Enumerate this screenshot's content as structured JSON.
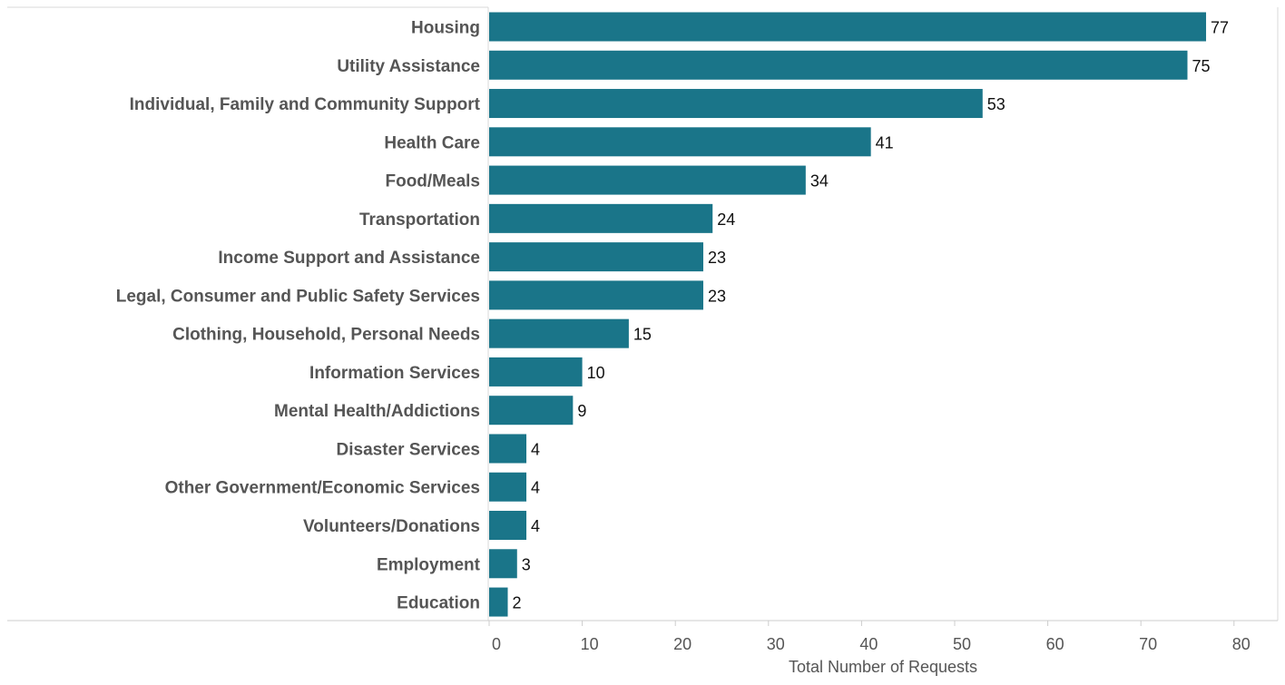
{
  "chart_data": {
    "type": "bar",
    "orientation": "horizontal",
    "categories": [
      "Housing",
      "Utility Assistance",
      "Individual, Family and Community Support",
      "Health Care",
      "Food/Meals",
      "Transportation",
      "Income Support and Assistance",
      "Legal, Consumer and Public Safety Services",
      "Clothing, Household, Personal Needs",
      "Information Services",
      "Mental Health/Addictions",
      "Disaster Services",
      "Other Government/Economic Services",
      "Volunteers/Donations",
      "Employment",
      "Education"
    ],
    "values": [
      77,
      75,
      53,
      41,
      34,
      24,
      23,
      23,
      15,
      10,
      9,
      4,
      4,
      4,
      3,
      2
    ],
    "xlabel": "Total Number of Requests",
    "ylabel": "",
    "xlim": [
      0,
      85
    ],
    "xticks": [
      0,
      10,
      20,
      30,
      40,
      50,
      60,
      70,
      80
    ],
    "bar_color": "#1a7589",
    "grid": false,
    "data_labels": true
  }
}
